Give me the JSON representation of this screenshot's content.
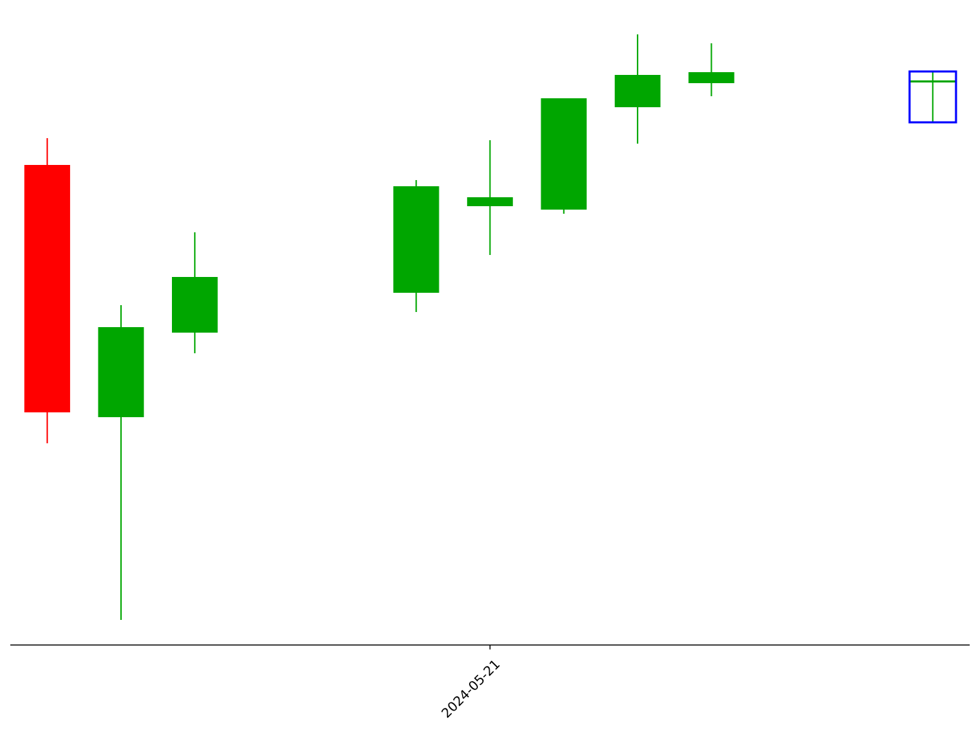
{
  "chart_data": {
    "type": "candlestick",
    "x": [
      0,
      1,
      2,
      5,
      6,
      7,
      8,
      9,
      12
    ],
    "open": [
      70.0,
      33.3,
      45.6,
      51.4,
      64.0,
      63.5,
      78.4,
      81.9,
      82.2
    ],
    "high": [
      73.9,
      49.6,
      60.2,
      67.8,
      73.6,
      79.7,
      89.0,
      87.7,
      83.6
    ],
    "low": [
      29.5,
      3.8,
      42.6,
      48.6,
      56.9,
      62.9,
      73.1,
      80.0,
      76.2
    ],
    "close": [
      34.0,
      46.4,
      53.7,
      66.9,
      65.3,
      79.7,
      83.1,
      83.5,
      82.3
    ],
    "up_color": "#00a600",
    "down_color": "#ff0000",
    "highlight_index": 8,
    "highlight_color": "#0000ff",
    "xlim": [
      -0.5,
      12.5
    ],
    "xticks": [
      {
        "value": 6,
        "label": "2024-05-21"
      }
    ],
    "ylim": [
      0,
      94
    ]
  }
}
